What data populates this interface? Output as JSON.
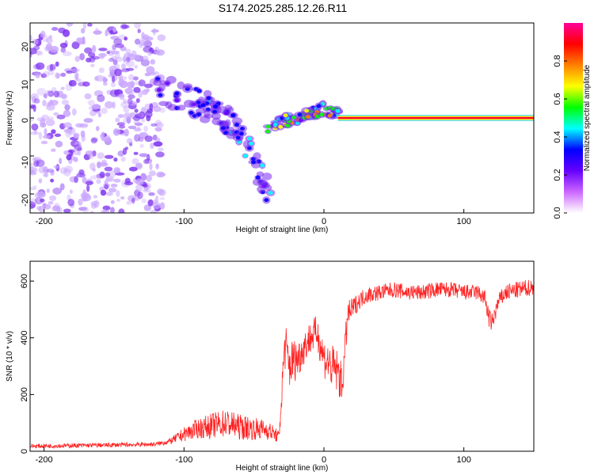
{
  "title": "S174.2025.285.12.26.R11",
  "chart_data": [
    {
      "type": "heatmap",
      "name": "spectrogram",
      "xlabel": "Height of straight line (km)",
      "ylabel": "Frequency (Hz)",
      "xlim": [
        -210,
        150
      ],
      "ylim": [
        -25,
        25
      ],
      "xticks": [
        -200,
        -100,
        0,
        100
      ],
      "yticks": [
        -20,
        -10,
        0,
        10,
        20
      ],
      "colorbar": {
        "label": "Normalized spectral amplitude",
        "range": [
          0,
          1
        ],
        "ticks": [
          0.0,
          0.2,
          0.4,
          0.6,
          0.8
        ],
        "colormap": [
          "#ffffff",
          "#cc66ff",
          "#6600ff",
          "#0000ff",
          "#00ffff",
          "#00ff00",
          "#ffff00",
          "#ff8000",
          "#ff0000",
          "#ff0099"
        ]
      },
      "features": [
        {
          "label": "noise field",
          "x_range": [
            -210,
            -115
          ],
          "freq_range": [
            -25,
            25
          ],
          "amplitude": 0.1
        },
        {
          "label": "descending branch",
          "x": [
            -120,
            -100,
            -80,
            -60,
            -45,
            -38
          ],
          "freq": [
            8,
            5,
            2,
            -3,
            -15,
            -20
          ],
          "amplitude": 0.25
        },
        {
          "label": "converging trace",
          "x": [
            -40,
            -30,
            -20,
            -10,
            0,
            10
          ],
          "freq": [
            -3,
            -1,
            0,
            1,
            2.5,
            1
          ],
          "amplitude": 0.5
        },
        {
          "label": "zero-frequency line",
          "x": [
            10,
            150
          ],
          "freq": [
            0,
            0
          ],
          "amplitude": 0.9
        }
      ]
    },
    {
      "type": "line",
      "name": "snr",
      "xlabel": "Height of straight line (km)",
      "ylabel": "SNR (10 * v/v)",
      "xlim": [
        -210,
        150
      ],
      "ylim": [
        0,
        670
      ],
      "xticks": [
        -200,
        -100,
        0,
        100
      ],
      "yticks": [
        0,
        200,
        400,
        600
      ],
      "color": "#ff2222",
      "series": [
        {
          "name": "SNR",
          "x": [
            -210,
            -180,
            -150,
            -120,
            -110,
            -100,
            -90,
            -80,
            -70,
            -60,
            -50,
            -40,
            -32,
            -28,
            -25,
            -22,
            -18,
            -15,
            -10,
            -5,
            0,
            5,
            10,
            13,
            17,
            20,
            25,
            30,
            40,
            50,
            60,
            70,
            80,
            90,
            100,
            110,
            115,
            118,
            120,
            125,
            130,
            140,
            150
          ],
          "y": [
            18,
            20,
            22,
            25,
            35,
            60,
            80,
            90,
            100,
            85,
            80,
            75,
            50,
            380,
            300,
            320,
            330,
            360,
            400,
            420,
            330,
            300,
            280,
            230,
            480,
            500,
            530,
            550,
            560,
            570,
            560,
            560,
            570,
            570,
            560,
            560,
            540,
            470,
            450,
            530,
            560,
            570,
            580
          ],
          "spread": [
            8,
            8,
            8,
            8,
            10,
            25,
            35,
            45,
            50,
            45,
            40,
            35,
            20,
            90,
            90,
            80,
            70,
            60,
            60,
            60,
            70,
            80,
            80,
            70,
            50,
            40,
            30,
            30,
            28,
            28,
            28,
            28,
            28,
            28,
            28,
            28,
            30,
            35,
            35,
            30,
            30,
            30,
            30
          ]
        }
      ]
    }
  ]
}
